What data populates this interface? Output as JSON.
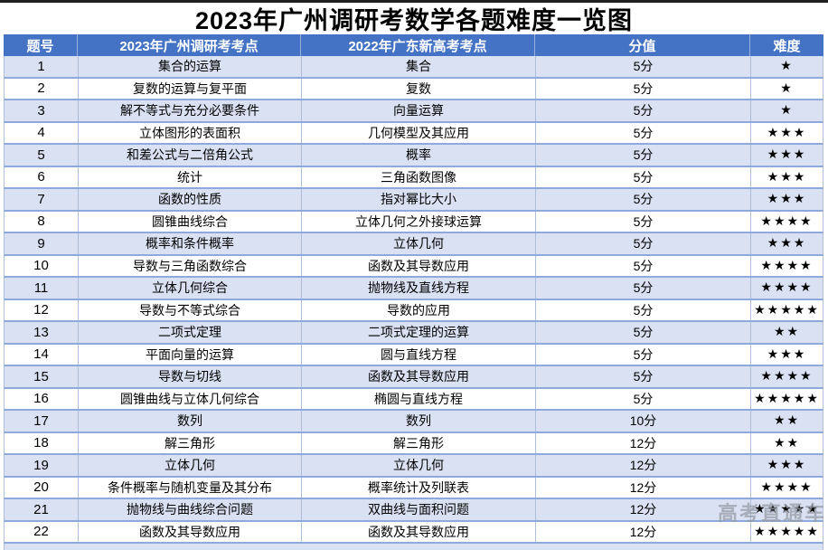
{
  "title": "2023年广州调研考数学各题难度一览图",
  "watermark": "高考直通车",
  "colors": {
    "header_bg": "#4472C4",
    "row_alt_bg": "#D9E1F2",
    "row_bg": "#FFFFFF",
    "grid_line": "#8EA9DB",
    "star": "#000000"
  },
  "table": {
    "columns": [
      "题号",
      "2023年广州调研考考点",
      "2022年广东新高考考点",
      "分值",
      "难度"
    ],
    "star_glyph": "★",
    "rows": [
      {
        "no": "1",
        "topic2023": "集合的运算",
        "topic2022": "集合",
        "score": "5分",
        "stars": 1
      },
      {
        "no": "2",
        "topic2023": "复数的运算与复平面",
        "topic2022": "复数",
        "score": "5分",
        "stars": 1
      },
      {
        "no": "3",
        "topic2023": "解不等式与充分必要条件",
        "topic2022": "向量运算",
        "score": "5分",
        "stars": 1
      },
      {
        "no": "4",
        "topic2023": "立体图形的表面积",
        "topic2022": "几何模型及其应用",
        "score": "5分",
        "stars": 3
      },
      {
        "no": "5",
        "topic2023": "和差公式与二倍角公式",
        "topic2022": "概率",
        "score": "5分",
        "stars": 3
      },
      {
        "no": "6",
        "topic2023": "统计",
        "topic2022": "三角函数图像",
        "score": "5分",
        "stars": 3
      },
      {
        "no": "7",
        "topic2023": "函数的性质",
        "topic2022": "指对幂比大小",
        "score": "5分",
        "stars": 3
      },
      {
        "no": "8",
        "topic2023": "圆锥曲线综合",
        "topic2022": "立体几何之外接球运算",
        "score": "5分",
        "stars": 4
      },
      {
        "no": "9",
        "topic2023": "概率和条件概率",
        "topic2022": "立体几何",
        "score": "5分",
        "stars": 3
      },
      {
        "no": "10",
        "topic2023": "导数与三角函数综合",
        "topic2022": "函数及其导数应用",
        "score": "5分",
        "stars": 4
      },
      {
        "no": "11",
        "topic2023": "立体几何综合",
        "topic2022": "抛物线及直线方程",
        "score": "5分",
        "stars": 4
      },
      {
        "no": "12",
        "topic2023": "导数与不等式综合",
        "topic2022": "导数的应用",
        "score": "5分",
        "stars": 5
      },
      {
        "no": "13",
        "topic2023": "二项式定理",
        "topic2022": "二项式定理的运算",
        "score": "5分",
        "stars": 2
      },
      {
        "no": "14",
        "topic2023": "平面向量的运算",
        "topic2022": "圆与直线方程",
        "score": "5分",
        "stars": 3
      },
      {
        "no": "15",
        "topic2023": "导数与切线",
        "topic2022": "函数及其导数应用",
        "score": "5分",
        "stars": 4
      },
      {
        "no": "16",
        "topic2023": "圆锥曲线与立体几何综合",
        "topic2022": "椭圆与直线方程",
        "score": "5分",
        "stars": 5
      },
      {
        "no": "17",
        "topic2023": "数列",
        "topic2022": "数列",
        "score": "10分",
        "stars": 2
      },
      {
        "no": "18",
        "topic2023": "解三角形",
        "topic2022": "解三角形",
        "score": "12分",
        "stars": 2
      },
      {
        "no": "19",
        "topic2023": "立体几何",
        "topic2022": "立体几何",
        "score": "12分",
        "stars": 3
      },
      {
        "no": "20",
        "topic2023": "条件概率与随机变量及其分布",
        "topic2022": "概率统计及列联表",
        "score": "12分",
        "stars": 4
      },
      {
        "no": "21",
        "topic2023": "抛物线与曲线综合问题",
        "topic2022": "双曲线与面积问题",
        "score": "12分",
        "stars": 5
      },
      {
        "no": "22",
        "topic2023": "函数及其导数应用",
        "topic2022": "函数及其导数应用",
        "score": "12分",
        "stars": 5
      }
    ]
  }
}
